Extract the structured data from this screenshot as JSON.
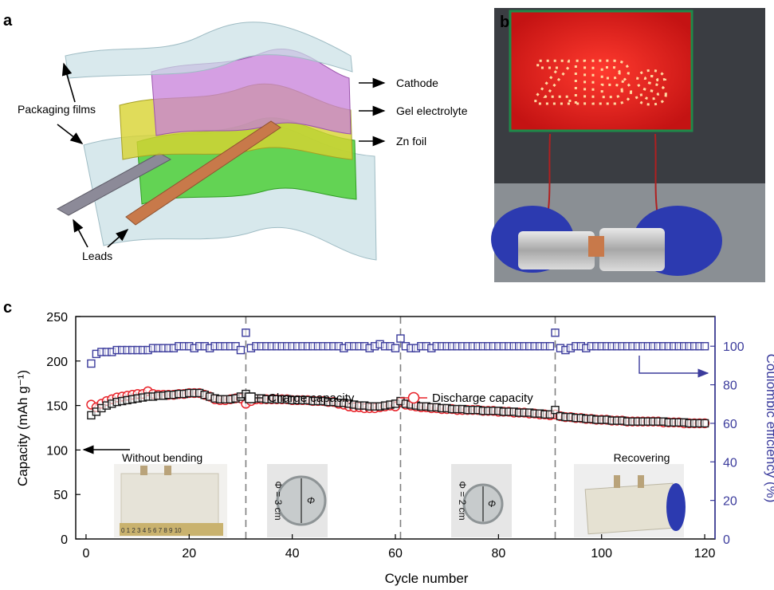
{
  "panels": {
    "a": {
      "letter": "a",
      "labels": {
        "cathode": "Cathode",
        "gel": "Gel electrolyte",
        "zn": "Zn foil",
        "films": "Packaging films",
        "leads": "Leads"
      }
    },
    "b": {
      "letter": "b",
      "led_text": "ZIBs"
    },
    "c": {
      "letter": "c"
    }
  },
  "colors": {
    "charge": "#1a1a1a",
    "discharge": "#e8232a",
    "ce": "#3b3b9c",
    "cathode": "#c77fd9",
    "gel": "#d8d331",
    "zn": "#4fcf3a",
    "film": "#c9e0e6"
  },
  "chart_data": {
    "type": "scatter",
    "xlabel": "Cycle number",
    "ylabel": "Capacity (mAh g⁻¹)",
    "y2label": "Coulombic efficiency (%)",
    "xlim": [
      -2,
      122
    ],
    "ylim": [
      0,
      250
    ],
    "y2lim": [
      0,
      115.4
    ],
    "xticks": [
      0,
      20,
      40,
      60,
      80,
      100,
      120
    ],
    "yticks": [
      0,
      50,
      100,
      150,
      200,
      250
    ],
    "y2ticks": [
      0,
      20,
      40,
      60,
      80,
      100
    ],
    "dividers": [
      31,
      61,
      91
    ],
    "legend": {
      "charge": "Charge capacity",
      "discharge": "Discharge capacity"
    },
    "annotations": {
      "without_bending": "Without bending",
      "recovering": "Recovering",
      "phi3": "Φ = 3 cm",
      "phi2": "Φ = 2 cm",
      "phi": "Φ"
    },
    "series": [
      {
        "name": "Charge capacity",
        "axis": "left",
        "marker": "square",
        "x": [
          1,
          2,
          3,
          4,
          5,
          6,
          7,
          8,
          9,
          10,
          11,
          12,
          13,
          14,
          15,
          16,
          17,
          18,
          19,
          20,
          21,
          22,
          23,
          24,
          25,
          26,
          27,
          28,
          29,
          30,
          31,
          32,
          33,
          34,
          35,
          36,
          37,
          38,
          39,
          40,
          41,
          42,
          43,
          44,
          45,
          46,
          47,
          48,
          49,
          50,
          51,
          52,
          53,
          54,
          55,
          56,
          57,
          58,
          59,
          60,
          61,
          62,
          63,
          64,
          65,
          66,
          67,
          68,
          69,
          70,
          71,
          72,
          73,
          74,
          75,
          76,
          77,
          78,
          79,
          80,
          81,
          82,
          83,
          84,
          85,
          86,
          87,
          88,
          89,
          90,
          91,
          92,
          93,
          94,
          95,
          96,
          97,
          98,
          99,
          100,
          101,
          102,
          103,
          104,
          105,
          106,
          107,
          108,
          109,
          110,
          111,
          112,
          113,
          114,
          115,
          116,
          117,
          118,
          119,
          120
        ],
        "values": [
          139,
          143,
          147,
          150,
          152,
          154,
          155,
          156,
          157,
          158,
          159,
          160,
          160,
          161,
          161,
          162,
          162,
          163,
          163,
          164,
          164,
          164,
          162,
          160,
          158,
          157,
          157,
          157,
          158,
          160,
          163,
          160,
          158,
          158,
          157,
          157,
          157,
          157,
          157,
          156,
          156,
          156,
          156,
          155,
          155,
          155,
          154,
          154,
          153,
          153,
          152,
          151,
          150,
          150,
          149,
          149,
          149,
          150,
          151,
          152,
          155,
          152,
          151,
          150,
          149,
          149,
          148,
          148,
          147,
          147,
          146,
          146,
          146,
          145,
          145,
          145,
          144,
          144,
          144,
          144,
          143,
          143,
          143,
          142,
          142,
          142,
          141,
          141,
          140,
          140,
          145,
          138,
          137,
          137,
          136,
          136,
          135,
          135,
          134,
          134,
          134,
          133,
          133,
          133,
          132,
          132,
          132,
          132,
          132,
          132,
          132,
          132,
          131,
          131,
          131,
          131,
          130,
          130,
          130,
          130
        ]
      },
      {
        "name": "Discharge capacity",
        "axis": "left",
        "marker": "circle",
        "x": [
          1,
          2,
          3,
          4,
          5,
          6,
          7,
          8,
          9,
          10,
          11,
          12,
          13,
          14,
          15,
          16,
          17,
          18,
          19,
          20,
          21,
          22,
          23,
          24,
          25,
          26,
          27,
          28,
          29,
          30,
          31,
          32,
          33,
          34,
          35,
          36,
          37,
          38,
          39,
          40,
          41,
          42,
          43,
          44,
          45,
          46,
          47,
          48,
          49,
          50,
          51,
          52,
          53,
          54,
          55,
          56,
          57,
          58,
          59,
          60,
          61,
          62,
          63,
          64,
          65,
          66,
          67,
          68,
          69,
          70,
          71,
          72,
          73,
          74,
          75,
          76,
          77,
          78,
          79,
          80,
          81,
          82,
          83,
          84,
          85,
          86,
          87,
          88,
          89,
          90,
          91,
          92,
          93,
          94,
          95,
          96,
          97,
          98,
          99,
          100,
          101,
          102,
          103,
          104,
          105,
          106,
          107,
          108,
          109,
          110,
          111,
          112,
          113,
          114,
          115,
          116,
          117,
          118,
          119,
          120
        ],
        "values": [
          151,
          148,
          152,
          155,
          157,
          159,
          160,
          161,
          162,
          163,
          163,
          166,
          163,
          162,
          162,
          162,
          162,
          163,
          163,
          164,
          164,
          164,
          162,
          160,
          157,
          156,
          156,
          157,
          158,
          158,
          152,
          155,
          157,
          157,
          157,
          157,
          157,
          157,
          157,
          156,
          156,
          156,
          156,
          155,
          155,
          155,
          154,
          154,
          152,
          151,
          149,
          148,
          148,
          147,
          147,
          147,
          148,
          149,
          150,
          149,
          154,
          151,
          150,
          149,
          148,
          148,
          147,
          147,
          146,
          146,
          146,
          145,
          145,
          145,
          145,
          145,
          144,
          144,
          144,
          143,
          143,
          143,
          142,
          142,
          142,
          141,
          141,
          140,
          140,
          139,
          140,
          138,
          137,
          137,
          136,
          136,
          135,
          135,
          134,
          134,
          134,
          133,
          133,
          133,
          132,
          132,
          132,
          132,
          132,
          132,
          132,
          131,
          131,
          131,
          131,
          130,
          130,
          130,
          130,
          130
        ]
      },
      {
        "name": "Coulombic efficiency",
        "axis": "right",
        "marker": "square",
        "x": [
          1,
          2,
          3,
          4,
          5,
          6,
          7,
          8,
          9,
          10,
          11,
          12,
          13,
          14,
          15,
          16,
          17,
          18,
          19,
          20,
          21,
          22,
          23,
          24,
          25,
          26,
          27,
          28,
          29,
          30,
          31,
          32,
          33,
          34,
          35,
          36,
          37,
          38,
          39,
          40,
          41,
          42,
          43,
          44,
          45,
          46,
          47,
          48,
          49,
          50,
          51,
          52,
          53,
          54,
          55,
          56,
          57,
          58,
          59,
          60,
          61,
          62,
          63,
          64,
          65,
          66,
          67,
          68,
          69,
          70,
          71,
          72,
          73,
          74,
          75,
          76,
          77,
          78,
          79,
          80,
          81,
          82,
          83,
          84,
          85,
          86,
          87,
          88,
          89,
          90,
          91,
          92,
          93,
          94,
          95,
          96,
          97,
          98,
          99,
          100,
          101,
          102,
          103,
          104,
          105,
          106,
          107,
          108,
          109,
          110,
          111,
          112,
          113,
          114,
          115,
          116,
          117,
          118,
          119,
          120
        ],
        "values": [
          91,
          96,
          97,
          97,
          97,
          98,
          98,
          98,
          98,
          98,
          98,
          98,
          99,
          99,
          99,
          99,
          99,
          100,
          100,
          100,
          99,
          100,
          100,
          99,
          100,
          100,
          100,
          100,
          100,
          98,
          107,
          99,
          100,
          100,
          100,
          100,
          100,
          100,
          100,
          100,
          100,
          100,
          100,
          100,
          100,
          100,
          100,
          100,
          100,
          99,
          100,
          100,
          100,
          100,
          99,
          100,
          101,
          100,
          100,
          99,
          104,
          100,
          99,
          99,
          100,
          100,
          99,
          100,
          100,
          100,
          100,
          100,
          100,
          100,
          100,
          100,
          100,
          100,
          100,
          100,
          100,
          100,
          100,
          100,
          100,
          100,
          100,
          100,
          100,
          100,
          107,
          99,
          98,
          99,
          100,
          100,
          99,
          100,
          100,
          100,
          100,
          100,
          100,
          100,
          100,
          100,
          100,
          100,
          100,
          100,
          100,
          100,
          100,
          100,
          100,
          100,
          100,
          100,
          100,
          100
        ]
      }
    ]
  }
}
